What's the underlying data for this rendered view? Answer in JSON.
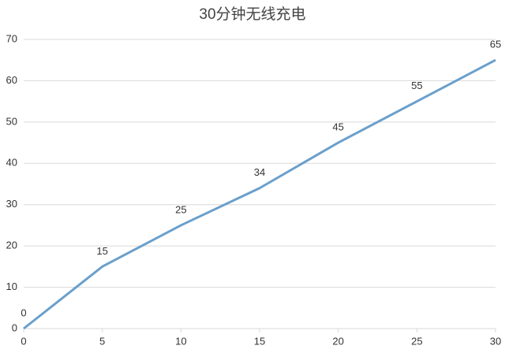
{
  "chart_data": {
    "type": "line",
    "title": "30分钟无线充电",
    "x": [
      0,
      5,
      10,
      15,
      20,
      25,
      30
    ],
    "series": [
      {
        "name": "30分钟无线充电",
        "color": "#6a9fcb",
        "values": [
          0,
          15,
          25,
          34,
          45,
          55,
          65
        ]
      }
    ],
    "xlim": [
      0,
      30
    ],
    "xticks": [
      0,
      5,
      10,
      15,
      20,
      25,
      30
    ],
    "ylim": [
      0,
      70
    ],
    "yticks": [
      0,
      10,
      20,
      30,
      40,
      50,
      60,
      70
    ],
    "grid": true
  }
}
